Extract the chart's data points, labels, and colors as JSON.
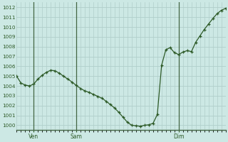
{
  "background_color": "#cce8e4",
  "grid_color": "#b0ceca",
  "line_color": "#2d5a27",
  "marker_color": "#2d5a27",
  "ylim": [
    999.5,
    1012.5
  ],
  "yticks": [
    1000,
    1001,
    1002,
    1003,
    1004,
    1005,
    1006,
    1007,
    1008,
    1009,
    1010,
    1011,
    1012
  ],
  "xtick_labels": [
    "Ven",
    "Sam",
    "Dim"
  ],
  "vline_x_indices": [
    4,
    14,
    38
  ],
  "y_values": [
    1005.0,
    1004.3,
    1004.1,
    1004.0,
    1004.2,
    1004.7,
    1005.1,
    1005.4,
    1005.6,
    1005.55,
    1005.3,
    1005.0,
    1004.7,
    1004.4,
    1004.05,
    1003.75,
    1003.5,
    1003.35,
    1003.15,
    1002.95,
    1002.75,
    1002.45,
    1002.1,
    1001.75,
    1001.3,
    1000.8,
    1000.3,
    1000.0,
    999.95,
    999.9,
    1000.0,
    1000.05,
    1000.2,
    1001.1,
    1006.1,
    1007.7,
    1007.9,
    1007.4,
    1007.2,
    1007.45,
    1007.6,
    1007.5,
    1008.45,
    1009.1,
    1009.75,
    1010.3,
    1010.85,
    1011.35,
    1011.7,
    1011.9
  ]
}
